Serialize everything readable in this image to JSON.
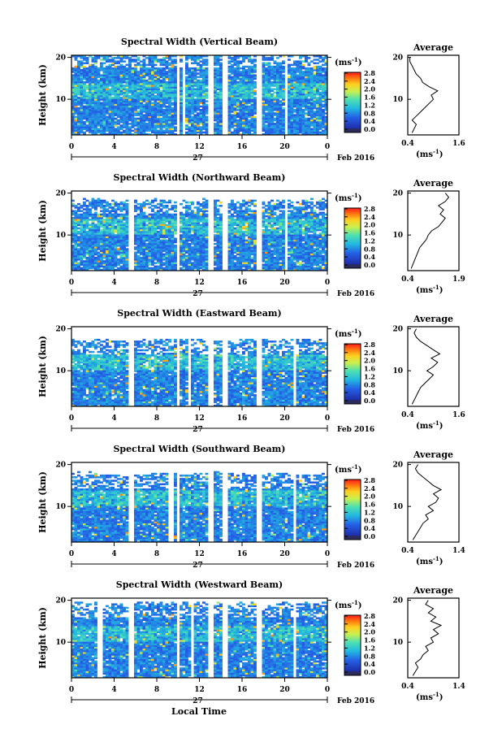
{
  "figure": {
    "xlabel": "Local Time",
    "date_label": "Feb 2016",
    "day_label": "27",
    "colorbar_unit": "(ms",
    "colorbar_unit_exp": "-1",
    "colorbar_unit_close": ")",
    "avg_title": "Average",
    "avg_xlabel": "(ms",
    "avg_xlabel_exp": "-1",
    "avg_xlabel_close": ")",
    "ylabel": "Height (km)",
    "colors": {
      "low": "#1f2ea8",
      "mid": "#22b8e0",
      "high": "#ff2020",
      "bottom_bar": "#2c2c5c"
    }
  },
  "chart_data": [
    {
      "type": "heatmap",
      "title": "Spectral Width (Vertical Beam)",
      "xticks": [
        "0",
        "4",
        "8",
        "12",
        "16",
        "20",
        "0"
      ],
      "yticks": [
        "10",
        "20"
      ],
      "xlim": [
        0,
        24
      ],
      "ylim": [
        1.5,
        20.5
      ],
      "colorbar_ticks": [
        "0.0",
        "0.4",
        "0.8",
        "1.2",
        "1.6",
        "2.0",
        "2.4",
        "2.8"
      ],
      "clim": [
        0,
        3.0
      ],
      "data_top_km": 20.5,
      "gaps_hours": [
        10.0,
        10.6,
        13.1,
        14.4,
        17.6,
        20.2
      ],
      "average": {
        "xticks": [
          "0.4",
          "1.6"
        ],
        "xlim": [
          0.4,
          1.6
        ],
        "ylim": [
          1.5,
          20.5
        ],
        "yticks": [
          "10",
          "20"
        ],
        "profile": [
          [
            0.5,
            2
          ],
          [
            0.55,
            3
          ],
          [
            0.6,
            4
          ],
          [
            0.5,
            5
          ],
          [
            0.6,
            6
          ],
          [
            0.7,
            7
          ],
          [
            0.8,
            8
          ],
          [
            0.9,
            9
          ],
          [
            1.0,
            10
          ],
          [
            0.95,
            11
          ],
          [
            1.1,
            12
          ],
          [
            0.9,
            13
          ],
          [
            0.75,
            14
          ],
          [
            0.7,
            15
          ],
          [
            0.6,
            16
          ],
          [
            0.55,
            17
          ],
          [
            0.5,
            18
          ],
          [
            0.45,
            19
          ],
          [
            0.45,
            20
          ]
        ]
      }
    },
    {
      "type": "heatmap",
      "title": "Spectral Width (Northward Beam)",
      "xticks": [
        "0",
        "4",
        "8",
        "12",
        "16",
        "20",
        "0"
      ],
      "yticks": [
        "10",
        "20"
      ],
      "xlim": [
        0,
        24
      ],
      "ylim": [
        1.5,
        20.5
      ],
      "colorbar_ticks": [
        "0.0",
        "0.4",
        "0.8",
        "1.2",
        "1.6",
        "2.0",
        "2.4",
        "2.8"
      ],
      "clim": [
        0,
        3.0
      ],
      "data_top_km": 18.0,
      "gaps_hours": [
        5.6,
        10.0,
        13.1,
        14.4,
        17.6,
        20.2
      ],
      "average": {
        "xticks": [
          "0.4",
          "1.9"
        ],
        "xlim": [
          0.4,
          1.9
        ],
        "ylim": [
          1.5,
          20.5
        ],
        "yticks": [
          "10",
          "20"
        ],
        "profile": [
          [
            0.5,
            2
          ],
          [
            0.55,
            3
          ],
          [
            0.6,
            4
          ],
          [
            0.65,
            5
          ],
          [
            0.7,
            6
          ],
          [
            0.75,
            7
          ],
          [
            0.85,
            8
          ],
          [
            0.95,
            9
          ],
          [
            1.0,
            10
          ],
          [
            1.1,
            11
          ],
          [
            1.3,
            12
          ],
          [
            1.4,
            13
          ],
          [
            1.5,
            14
          ],
          [
            1.35,
            15
          ],
          [
            1.45,
            16
          ],
          [
            1.3,
            17
          ],
          [
            1.5,
            18
          ],
          [
            1.6,
            19
          ],
          [
            1.5,
            20
          ]
        ]
      }
    },
    {
      "type": "heatmap",
      "title": "Spectral Width (Eastward Beam)",
      "xticks": [
        "0",
        "4",
        "8",
        "12",
        "16",
        "20",
        "0"
      ],
      "yticks": [
        "10",
        "20"
      ],
      "xlim": [
        0,
        24
      ],
      "ylim": [
        1.5,
        20.5
      ],
      "colorbar_ticks": [
        "0.0",
        "0.4",
        "0.8",
        "1.2",
        "1.6",
        "2.0",
        "2.4",
        "2.8"
      ],
      "clim": [
        0,
        3.0
      ],
      "data_top_km": 17.0,
      "gaps_hours": [
        5.6,
        10.0,
        11.0,
        13.1,
        14.4,
        17.6,
        21.0
      ],
      "average": {
        "xticks": [
          "0.4",
          "1.6"
        ],
        "xlim": [
          0.4,
          1.6
        ],
        "ylim": [
          1.5,
          20.5
        ],
        "yticks": [
          "10",
          "20"
        ],
        "profile": [
          [
            0.5,
            2
          ],
          [
            0.55,
            3
          ],
          [
            0.6,
            4
          ],
          [
            0.65,
            5
          ],
          [
            0.7,
            6
          ],
          [
            0.8,
            7
          ],
          [
            0.9,
            8
          ],
          [
            1.0,
            9
          ],
          [
            0.85,
            10
          ],
          [
            1.0,
            11
          ],
          [
            1.1,
            12
          ],
          [
            0.95,
            13
          ],
          [
            1.15,
            14
          ],
          [
            1.0,
            15
          ],
          [
            0.85,
            16
          ],
          [
            0.7,
            17
          ],
          [
            0.6,
            18
          ],
          [
            0.55,
            19
          ],
          [
            0.6,
            20
          ]
        ]
      }
    },
    {
      "type": "heatmap",
      "title": "Spectral Width (Southward Beam)",
      "xticks": [
        "0",
        "4",
        "8",
        "12",
        "16",
        "20",
        "0"
      ],
      "yticks": [
        "10",
        "20"
      ],
      "xlim": [
        0,
        24
      ],
      "ylim": [
        1.5,
        20.5
      ],
      "colorbar_ticks": [
        "0.0",
        "0.4",
        "0.8",
        "1.2",
        "1.6",
        "2.0",
        "2.4",
        "2.8"
      ],
      "clim": [
        0,
        3.0
      ],
      "data_top_km": 17.5,
      "gaps_hours": [
        5.6,
        9.3,
        10.0,
        13.1,
        14.4,
        17.6,
        21.0
      ],
      "average": {
        "xticks": [
          "0.4",
          "1.4"
        ],
        "xlim": [
          0.4,
          1.4
        ],
        "ylim": [
          1.5,
          20.5
        ],
        "yticks": [
          "10",
          "20"
        ],
        "profile": [
          [
            0.5,
            2
          ],
          [
            0.55,
            3
          ],
          [
            0.6,
            4
          ],
          [
            0.65,
            5
          ],
          [
            0.7,
            6
          ],
          [
            0.8,
            7
          ],
          [
            0.75,
            8
          ],
          [
            0.9,
            9
          ],
          [
            0.8,
            10
          ],
          [
            0.95,
            11
          ],
          [
            1.0,
            12
          ],
          [
            0.9,
            13
          ],
          [
            1.05,
            14
          ],
          [
            0.9,
            15
          ],
          [
            0.8,
            16
          ],
          [
            0.7,
            17
          ],
          [
            0.6,
            18
          ],
          [
            0.55,
            19
          ],
          [
            0.6,
            20
          ]
        ]
      }
    },
    {
      "type": "heatmap",
      "title": "Spectral Width (Westward Beam)",
      "xticks": [
        "0",
        "4",
        "8",
        "12",
        "16",
        "20",
        "0"
      ],
      "yticks": [
        "10",
        "20"
      ],
      "xlim": [
        0,
        24
      ],
      "ylim": [
        1.5,
        20.5
      ],
      "colorbar_ticks": [
        "0.0",
        "0.4",
        "0.8",
        "1.2",
        "1.6",
        "2.0",
        "2.4",
        "2.8"
      ],
      "clim": [
        0,
        3.0
      ],
      "data_top_km": 19.0,
      "gaps_hours": [
        2.7,
        5.6,
        10.0,
        11.3,
        13.1,
        14.4,
        17.6,
        21.0
      ],
      "average": {
        "xticks": [
          "0.4",
          "1.4"
        ],
        "xlim": [
          0.4,
          1.4
        ],
        "ylim": [
          1.5,
          20.5
        ],
        "yticks": [
          "10",
          "20"
        ],
        "profile": [
          [
            0.5,
            2
          ],
          [
            0.55,
            3
          ],
          [
            0.6,
            4
          ],
          [
            0.55,
            5
          ],
          [
            0.65,
            6
          ],
          [
            0.7,
            7
          ],
          [
            0.8,
            8
          ],
          [
            0.75,
            9
          ],
          [
            0.9,
            10
          ],
          [
            0.85,
            11
          ],
          [
            1.0,
            12
          ],
          [
            0.9,
            13
          ],
          [
            1.05,
            14
          ],
          [
            0.85,
            15
          ],
          [
            0.95,
            16
          ],
          [
            0.8,
            17
          ],
          [
            0.9,
            18
          ],
          [
            0.75,
            19
          ],
          [
            0.8,
            20
          ]
        ]
      }
    }
  ]
}
